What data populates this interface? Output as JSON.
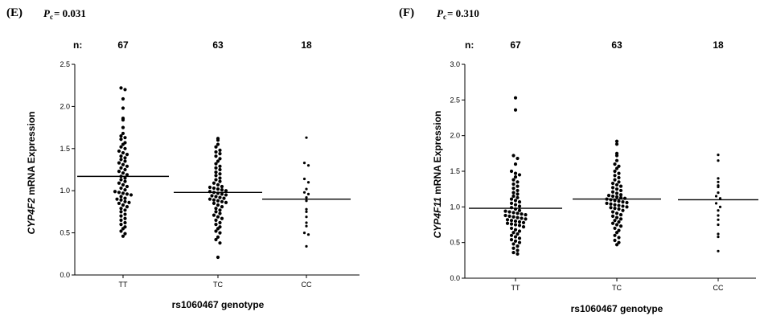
{
  "chart_data": [
    {
      "type": "scatter",
      "panel": "(E)",
      "p_prefix": "P",
      "p_sub": "c",
      "p_value": "= 0.031",
      "n_prefix": "n:",
      "n_counts": [
        "67",
        "63",
        "18"
      ],
      "categories": [
        "TT",
        "TC",
        "CC"
      ],
      "xlabel": "rs1060467 genotype",
      "ylabel_italic": "CYP4F2",
      "ylabel_rest": " mRNA Expression",
      "ylim": [
        0,
        2.5
      ],
      "yticks": [
        "0.0",
        "0.5",
        "1.0",
        "1.5",
        "2.0",
        "2.5"
      ],
      "means": [
        1.17,
        0.98,
        0.9
      ],
      "series": [
        {
          "values": [
            2.22,
            2.2,
            2.09,
            1.98,
            1.86,
            1.84,
            1.75,
            1.68,
            1.65,
            1.63,
            1.61,
            1.57,
            1.55,
            1.52,
            1.5,
            1.47,
            1.45,
            1.43,
            1.41,
            1.39,
            1.37,
            1.35,
            1.33,
            1.31,
            1.29,
            1.27,
            1.25,
            1.23,
            1.21,
            1.19,
            1.17,
            1.15,
            1.13,
            1.11,
            1.09,
            1.07,
            1.05,
            1.03,
            1.01,
            0.99,
            0.98,
            0.97,
            0.96,
            0.95,
            0.93,
            0.91,
            0.9,
            0.89,
            0.87,
            0.86,
            0.85,
            0.83,
            0.81,
            0.79,
            0.77,
            0.75,
            0.72,
            0.7,
            0.67,
            0.65,
            0.62,
            0.6,
            0.57,
            0.55,
            0.52,
            0.49,
            0.46
          ]
        },
        {
          "values": [
            1.62,
            1.6,
            1.55,
            1.52,
            1.48,
            1.46,
            1.44,
            1.41,
            1.38,
            1.35,
            1.32,
            1.29,
            1.27,
            1.25,
            1.22,
            1.2,
            1.18,
            1.15,
            1.13,
            1.11,
            1.09,
            1.07,
            1.05,
            1.04,
            1.03,
            1.02,
            1.01,
            1.0,
            0.99,
            0.98,
            0.97,
            0.96,
            0.95,
            0.94,
            0.93,
            0.92,
            0.91,
            0.9,
            0.89,
            0.88,
            0.87,
            0.86,
            0.85,
            0.83,
            0.81,
            0.79,
            0.77,
            0.75,
            0.73,
            0.71,
            0.69,
            0.67,
            0.65,
            0.62,
            0.6,
            0.57,
            0.55,
            0.52,
            0.5,
            0.45,
            0.42,
            0.38,
            0.21
          ]
        },
        {
          "values": [
            1.63,
            1.33,
            1.3,
            1.14,
            1.1,
            1.02,
            0.98,
            0.96,
            0.92,
            0.88,
            0.78,
            0.75,
            0.69,
            0.62,
            0.58,
            0.5,
            0.48,
            0.34
          ]
        }
      ]
    },
    {
      "type": "scatter",
      "panel": "(F)",
      "p_prefix": "P",
      "p_sub": "c",
      "p_value": "= 0.310",
      "n_prefix": "n:",
      "n_counts": [
        "67",
        "63",
        "18"
      ],
      "categories": [
        "TT",
        "TC",
        "CC"
      ],
      "xlabel": "rs1060467 genotype",
      "ylabel_italic": "CYP4F11",
      "ylabel_rest": " mRNA Expression",
      "ylim": [
        0,
        3.0
      ],
      "yticks": [
        "0.0",
        "0.5",
        "1.0",
        "1.5",
        "2.0",
        "2.5",
        "3.0"
      ],
      "means": [
        0.98,
        1.11,
        1.1
      ],
      "series": [
        {
          "values": [
            2.53,
            2.36,
            1.72,
            1.68,
            1.6,
            1.5,
            1.47,
            1.45,
            1.42,
            1.38,
            1.35,
            1.32,
            1.29,
            1.26,
            1.23,
            1.2,
            1.18,
            1.15,
            1.13,
            1.11,
            1.09,
            1.07,
            1.05,
            1.03,
            1.01,
            0.99,
            0.97,
            0.95,
            0.94,
            0.93,
            0.92,
            0.91,
            0.9,
            0.89,
            0.88,
            0.87,
            0.86,
            0.85,
            0.84,
            0.83,
            0.82,
            0.81,
            0.8,
            0.79,
            0.78,
            0.77,
            0.76,
            0.75,
            0.74,
            0.72,
            0.7,
            0.68,
            0.66,
            0.64,
            0.62,
            0.6,
            0.58,
            0.56,
            0.54,
            0.52,
            0.5,
            0.48,
            0.45,
            0.42,
            0.39,
            0.36,
            0.34
          ]
        },
        {
          "values": [
            1.92,
            1.88,
            1.75,
            1.72,
            1.65,
            1.6,
            1.57,
            1.54,
            1.5,
            1.47,
            1.44,
            1.41,
            1.38,
            1.35,
            1.33,
            1.31,
            1.29,
            1.27,
            1.25,
            1.23,
            1.21,
            1.19,
            1.17,
            1.16,
            1.15,
            1.14,
            1.13,
            1.12,
            1.11,
            1.1,
            1.09,
            1.08,
            1.07,
            1.06,
            1.05,
            1.04,
            1.03,
            1.02,
            1.01,
            1.0,
            0.99,
            0.98,
            0.97,
            0.95,
            0.93,
            0.91,
            0.89,
            0.87,
            0.85,
            0.83,
            0.81,
            0.79,
            0.77,
            0.75,
            0.73,
            0.7,
            0.67,
            0.64,
            0.6,
            0.57,
            0.53,
            0.5,
            0.47
          ]
        },
        {
          "values": [
            1.73,
            1.65,
            1.4,
            1.35,
            1.3,
            1.28,
            1.2,
            1.15,
            1.12,
            1.05,
            1.0,
            0.95,
            0.88,
            0.82,
            0.75,
            0.62,
            0.58,
            0.38
          ]
        }
      ]
    }
  ]
}
